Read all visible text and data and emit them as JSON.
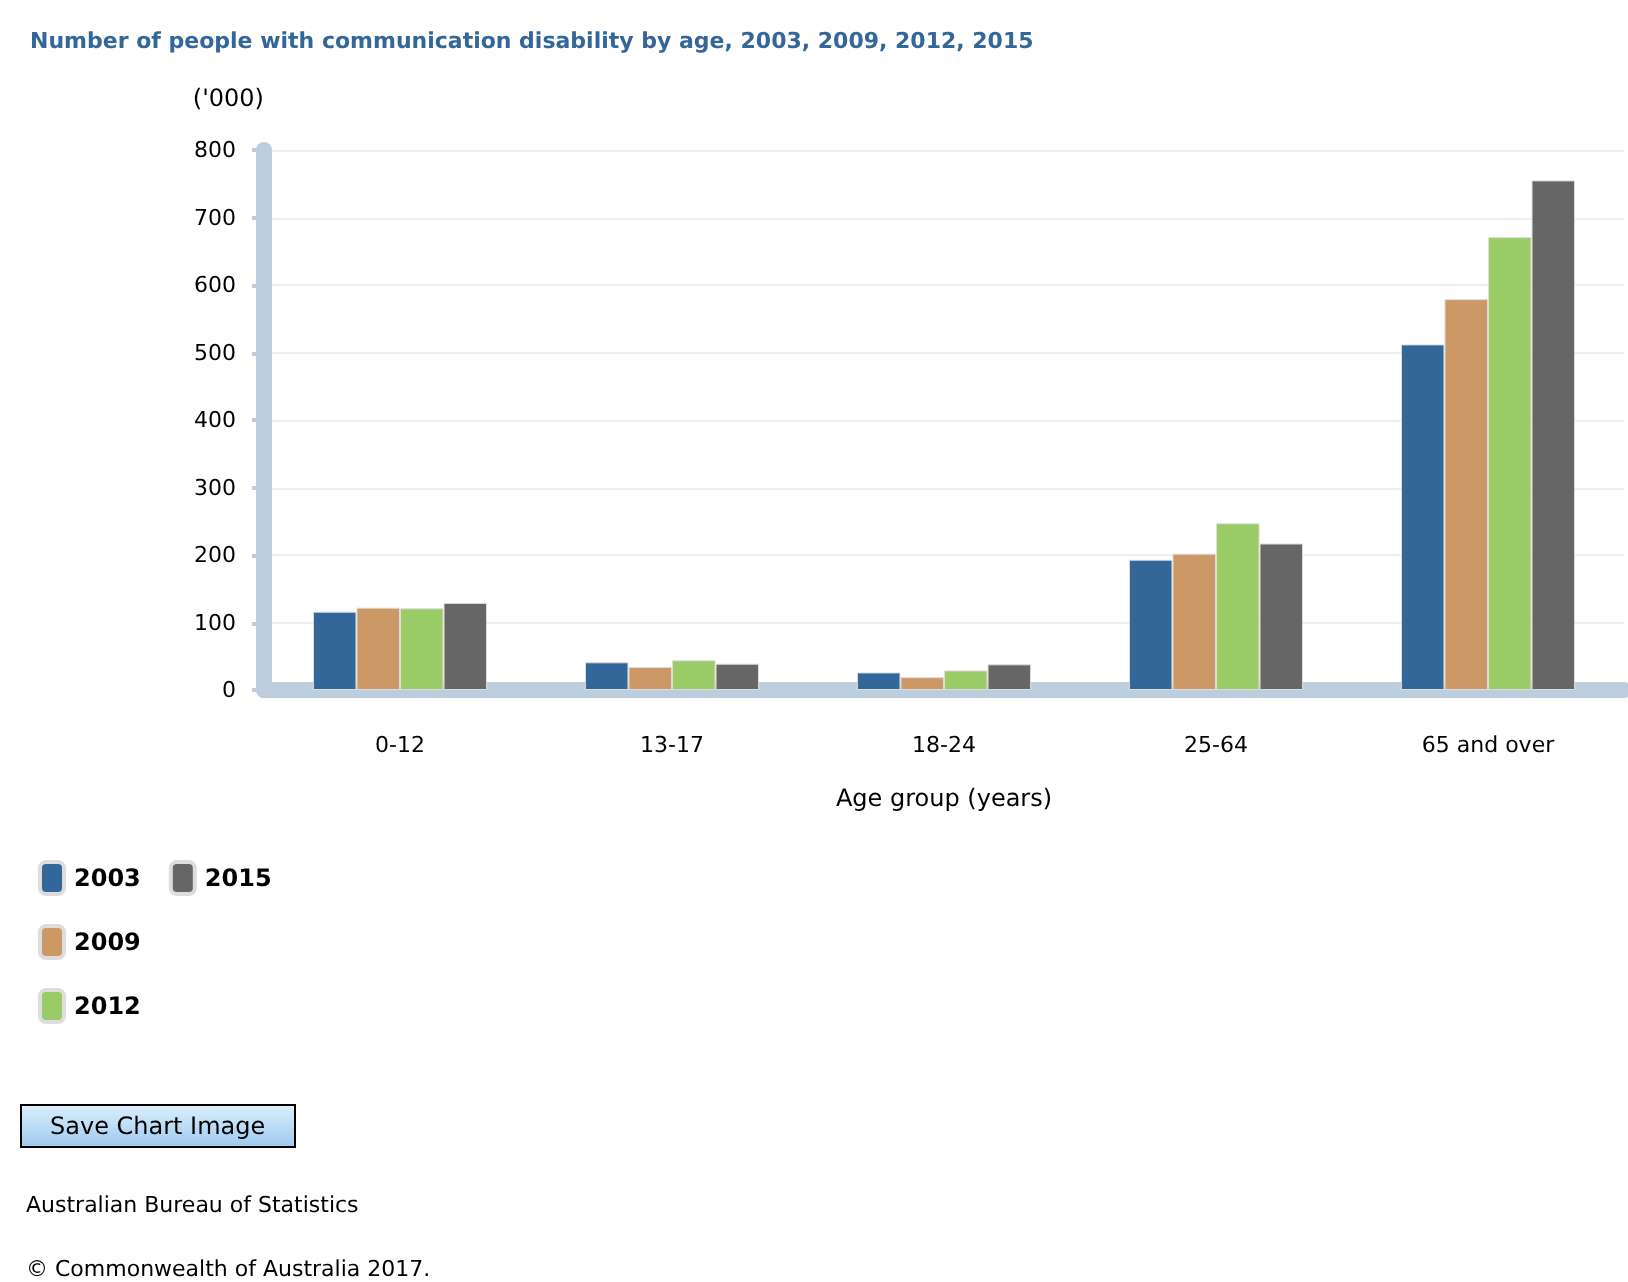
{
  "chart_data": {
    "type": "bar",
    "title": "Number of people with communication disability by age, 2003, 2009, 2012, 2015",
    "ylabel": "('000)",
    "xlabel": "Age group (years)",
    "categories": [
      "0-12",
      "13-17",
      "18-24",
      "25-64",
      "65 and over"
    ],
    "series": [
      {
        "name": "2003",
        "color": "#336699",
        "values": [
          116,
          41,
          26,
          193,
          512
        ]
      },
      {
        "name": "2009",
        "color": "#cc9966",
        "values": [
          122,
          34,
          19,
          202,
          579
        ]
      },
      {
        "name": "2012",
        "color": "#99cc66",
        "values": [
          121,
          44,
          29,
          247,
          671
        ]
      },
      {
        "name": "2015",
        "color": "#666666",
        "values": [
          129,
          39,
          38,
          217,
          755
        ]
      }
    ],
    "ylim": [
      0,
      800
    ],
    "yticks": [
      0,
      100,
      200,
      300,
      400,
      500,
      600,
      700,
      800
    ],
    "grid": "y",
    "legend": "bottom left",
    "annotations": [
      "Save Chart Image",
      "Australian Bureau of Statistics",
      "© Commonwealth of Australia 2017."
    ]
  }
}
